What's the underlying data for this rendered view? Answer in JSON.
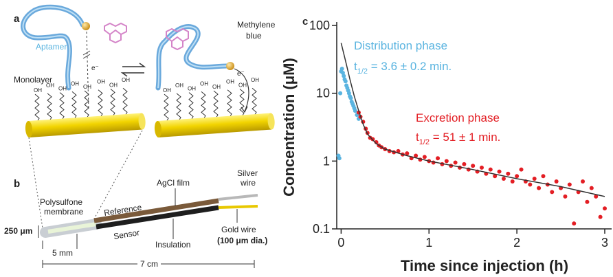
{
  "figure": {
    "panel_labels": [
      "a",
      "b",
      "c"
    ],
    "panel_a": {
      "aptamer": "Aptamer",
      "monolayer": "Monolayer",
      "methylene_blue": [
        "Methylene",
        "blue"
      ],
      "electron": "e⁻",
      "hydroxyl": "OH"
    },
    "panel_b": {
      "agcl": "AgCl film",
      "silver_wire": [
        "Silver",
        "wire"
      ],
      "membrane": [
        "Polysulfone",
        "membrane"
      ],
      "reference": "Reference",
      "sensor": "Sensor",
      "insulation": "Insulation",
      "gold_wire": [
        "Gold wire",
        "(100 μm dia.)"
      ],
      "diameter": "250 μm",
      "tip_length": "5 mm",
      "length": "7 cm"
    }
  },
  "chart_data": {
    "type": "scatter",
    "y_label": "Concentration (μM)",
    "x_label": "Time since injection (h)",
    "ylog": true,
    "xlim": [
      -0.05,
      3.0
    ],
    "ylim": [
      0.1,
      100
    ],
    "xticks": [
      0,
      1,
      2,
      3
    ],
    "yticks": [
      0.1,
      1,
      10,
      100
    ],
    "series": [
      {
        "name": "Distribution phase",
        "color": "#5ab4e0",
        "half_life": [
          "t",
          "1/2",
          " = 3.6 ± 0.2 min."
        ],
        "x": [
          -0.03,
          -0.02,
          -0.01,
          0,
          0.01,
          0.02,
          0.03,
          0.04,
          0.05,
          0.06,
          0.07,
          0.08,
          0.09,
          0.1,
          0.11,
          0.12,
          0.13,
          0.14,
          0.15,
          0.16,
          0.18,
          0.2
        ],
        "values": [
          1.2,
          1.1,
          10,
          21,
          23,
          20,
          18,
          16,
          15,
          13,
          12,
          11,
          10,
          9,
          8.5,
          7.5,
          7,
          6.5,
          6,
          5.5,
          4.8,
          4.2
        ]
      },
      {
        "name": "Excretion phase",
        "color": "#e31e24",
        "half_life": [
          "t",
          "1/2",
          " = 51 ± 1 min."
        ],
        "x": [
          0.2,
          0.22,
          0.25,
          0.28,
          0.3,
          0.33,
          0.36,
          0.4,
          0.43,
          0.46,
          0.5,
          0.55,
          0.6,
          0.65,
          0.7,
          0.75,
          0.8,
          0.85,
          0.9,
          0.95,
          1.0,
          1.05,
          1.1,
          1.15,
          1.2,
          1.25,
          1.3,
          1.35,
          1.4,
          1.45,
          1.5,
          1.55,
          1.6,
          1.65,
          1.7,
          1.75,
          1.8,
          1.85,
          1.9,
          1.95,
          2.0,
          2.05,
          2.1,
          2.15,
          2.2,
          2.25,
          2.3,
          2.35,
          2.4,
          2.45,
          2.5,
          2.55,
          2.6,
          2.65,
          2.7,
          2.75,
          2.8,
          2.85,
          2.9,
          2.95,
          3.0
        ],
        "values": [
          5.2,
          4.5,
          3.8,
          3,
          2.6,
          2.2,
          2.1,
          1.9,
          1.7,
          1.6,
          1.5,
          1.4,
          1.35,
          1.4,
          1.25,
          1.3,
          1.1,
          1.2,
          1.05,
          1.15,
          1.0,
          0.95,
          1.1,
          0.9,
          1.0,
          0.85,
          0.95,
          0.8,
          0.9,
          0.75,
          0.85,
          0.7,
          0.8,
          0.65,
          0.75,
          0.6,
          0.7,
          0.55,
          0.65,
          0.5,
          0.6,
          0.75,
          0.5,
          0.45,
          0.55,
          0.4,
          0.6,
          0.45,
          0.35,
          0.5,
          0.4,
          0.3,
          0.45,
          0.12,
          0.35,
          0.5,
          0.25,
          0.4,
          0.3,
          0.15,
          0.2
        ]
      }
    ],
    "fit": {
      "color": "#333333",
      "x": [
        0,
        0.05,
        0.1,
        0.15,
        0.2,
        0.25,
        0.3,
        0.4,
        0.5,
        0.75,
        1,
        1.5,
        2,
        2.5,
        3
      ],
      "values": [
        55,
        30,
        16,
        9,
        5.5,
        3.5,
        2.5,
        1.8,
        1.5,
        1.2,
        1.0,
        0.75,
        0.55,
        0.42,
        0.3
      ]
    }
  }
}
